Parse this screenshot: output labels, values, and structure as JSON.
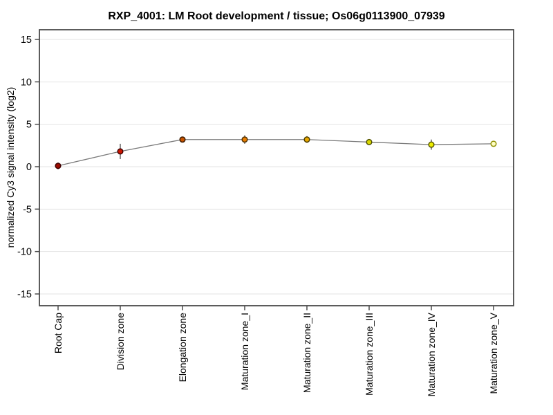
{
  "chart_data": {
    "type": "line",
    "title": "RXP_4001: LM Root development / tissue; Os06g0113900_07939",
    "xlabel": "",
    "ylabel": "normalized Cy3 signal intensity (log2)",
    "categories": [
      "Root Cap",
      "Division zone",
      "Elongation zone",
      "Maturation zone_I",
      "Maturation zone_II",
      "Maturation zone_III",
      "Maturation zone_IV",
      "Maturation zone_V"
    ],
    "values": [
      0.1,
      1.8,
      3.2,
      3.2,
      3.2,
      2.9,
      2.6,
      2.7
    ],
    "errors": [
      0.4,
      0.9,
      0.25,
      0.5,
      0.4,
      0.25,
      0.6,
      0.15
    ],
    "point_fill_colors": [
      "#9c0b00",
      "#cd1500",
      "#c75300",
      "#e87d00",
      "#e9a800",
      "#d9d800",
      "#eded00",
      "#fffec4"
    ],
    "point_border_colors": [
      "#400000",
      "#400000",
      "#3a1a00",
      "#503000",
      "#504000",
      "#4f4f00",
      "#5a5a00",
      "#8f8f00"
    ],
    "ylim": [
      -16.4,
      16.2
    ],
    "yticks": [
      15,
      10,
      5,
      0,
      -5,
      -10,
      -15
    ],
    "grid": "horizontal",
    "legend": "none",
    "line_color": "#7a7a7a",
    "error_bar_color": "#2b2b2b",
    "gridline_color": "#e3e3e3",
    "axis_color": "#4a4a4a",
    "background_color": "#ffffff"
  }
}
